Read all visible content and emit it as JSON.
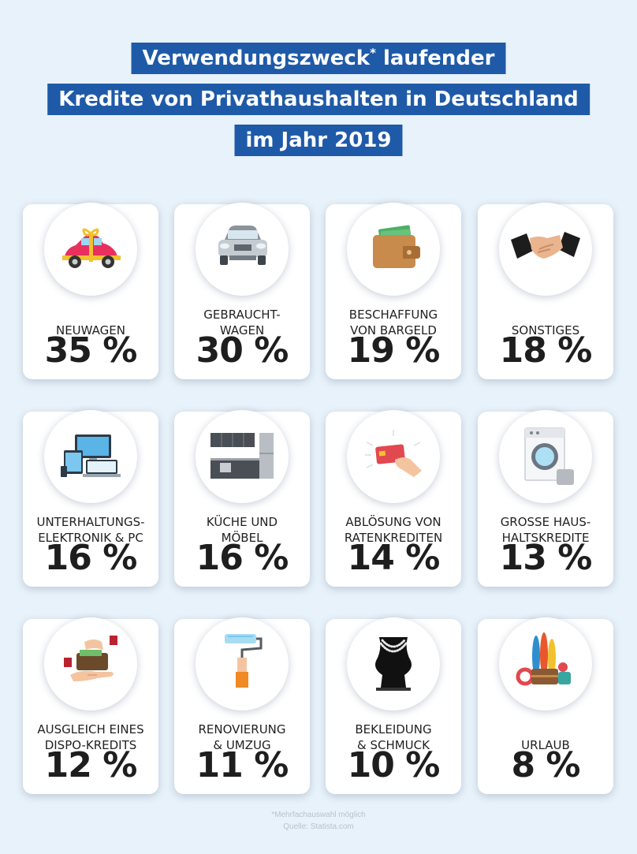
{
  "title": {
    "line1": "Verwendungszweck",
    "line1_mark": "*",
    "line1_rest": " laufender",
    "line2": "Kredite von Privathaushalten in Deutschland",
    "line3": "im Jahr 2019"
  },
  "items": [
    {
      "label_lines": [
        "NEUWAGEN"
      ],
      "value": "35 %",
      "icon": "gift-car-icon"
    },
    {
      "label_lines": [
        "GEBRAUCHT-",
        "WAGEN"
      ],
      "value": "30 %",
      "icon": "used-car-icon"
    },
    {
      "label_lines": [
        "BESCHAFFUNG",
        "VON BARGELD"
      ],
      "value": "19 %",
      "icon": "wallet-icon"
    },
    {
      "label_lines": [
        "SONSTIGES"
      ],
      "value": "18 %",
      "icon": "handshake-icon"
    },
    {
      "label_lines": [
        "UNTERHALTUNGS-",
        "ELEKTRONIK & PC"
      ],
      "value": "16 %",
      "icon": "devices-icon"
    },
    {
      "label_lines": [
        "KÜCHE UND",
        "MÖBEL"
      ],
      "value": "16 %",
      "icon": "kitchen-icon"
    },
    {
      "label_lines": [
        "ABLÖSUNG VON",
        "RATENKREDITEN"
      ],
      "value": "14 %",
      "icon": "credit-card-hand-icon"
    },
    {
      "label_lines": [
        "GROSSE HAUS-",
        "HALTSKREDITE"
      ],
      "value": "13 %",
      "icon": "washing-machine-icon"
    },
    {
      "label_lines": [
        "AUSGLEICH EINES",
        "DISPO-KREDITS"
      ],
      "value": "12 %",
      "icon": "wallet-hand-icon"
    },
    {
      "label_lines": [
        "RENOVIERUNG",
        "& UMZUG"
      ],
      "value": "11 %",
      "icon": "paint-roller-icon"
    },
    {
      "label_lines": [
        "BEKLEIDUNG",
        "& SCHMUCK"
      ],
      "value": "10 %",
      "icon": "necklace-icon"
    },
    {
      "label_lines": [
        "URLAUB"
      ],
      "value": "8 %",
      "icon": "luggage-icon"
    }
  ],
  "footnote": {
    "line1": "*Mehrfachauswahl möglich",
    "line2": "Quelle: Statista.com"
  },
  "colors": {
    "background": "#e8f2fa",
    "title_bar": "#1f5aa8",
    "title_text": "#ffffff",
    "text": "#222222"
  }
}
